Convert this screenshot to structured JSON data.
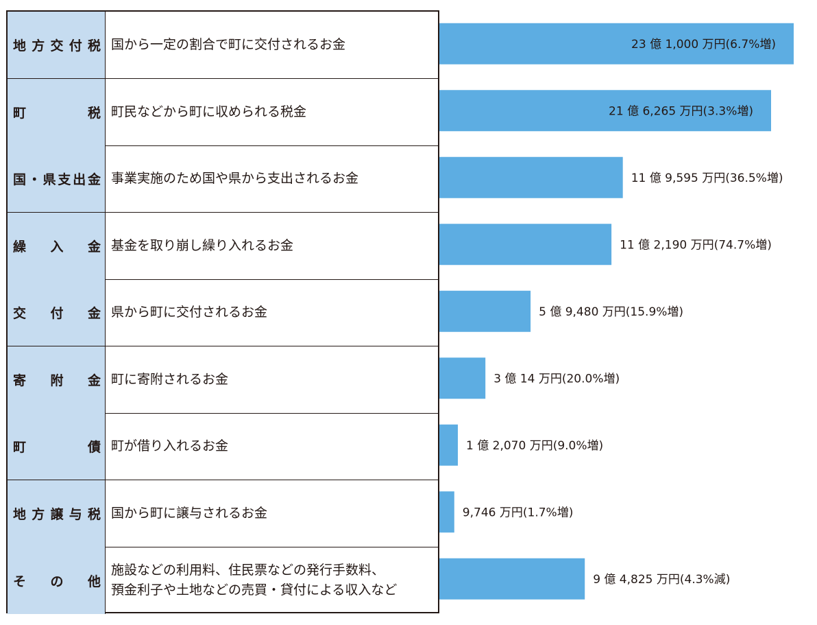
{
  "rows": [
    {
      "name": "地方交付税",
      "description": "国から一定の割合で町に交付されるお金",
      "label": "23 億 1,000 万円(6.7%増)"
    },
    {
      "name": "町　　　税",
      "description": "町民などから町に収められる税金",
      "label": "21 億 6,265 万円(3.3%増)"
    },
    {
      "name": "国・県支出金",
      "description": "事業実施のため国や県から支出されるお金",
      "label": "11 億 9,595 万円(36.5%増)"
    },
    {
      "name": "繰　入　金",
      "description": "基金を取り崩し繰り入れるお金",
      "label": "11 億 2,190 万円(74.7%増)"
    },
    {
      "name": "交　付　金",
      "description": "県から町に交付されるお金",
      "label": "5 億 9,480 万円(15.9%増)"
    },
    {
      "name": "寄　附　金",
      "description": "町に寄附されるお金",
      "label": "3 億 14 万円(20.0%増)"
    },
    {
      "name": "町　　　債",
      "description": "町が借り入れるお金",
      "label": "1 億 2,070 万円(9.0%増)"
    },
    {
      "name": "地方譲与税",
      "description": "国から町に譲与されるお金",
      "label": "9,746 万円(1.7%増)"
    },
    {
      "name": "そ　の　他",
      "description": "施設などの利用料、住民票などの発行手数料、\n預金利子や土地などの売買・貸付による収入など",
      "label": "9 億 4,825 万円(4.3%減)"
    }
  ],
  "chart_data": {
    "type": "bar",
    "orientation": "horizontal",
    "unit": "万円",
    "categories": [
      "地方交付税",
      "町税",
      "国・県支出金",
      "繰入金",
      "交付金",
      "寄附金",
      "町債",
      "地方譲与税",
      "その他"
    ],
    "values": [
      231000,
      216265,
      119595,
      112190,
      59480,
      30014,
      12070,
      9746,
      94825
    ],
    "change_percent": [
      6.7,
      3.3,
      36.5,
      74.7,
      15.9,
      20.0,
      9.0,
      1.7,
      -4.3
    ],
    "data_labels": [
      "23 億 1,000 万円(6.7%増)",
      "21 億 6,265 万円(3.3%増)",
      "11 億 9,595 万円(36.5%増)",
      "11 億 2,190 万円(74.7%増)",
      "5 億 9,480 万円(15.9%増)",
      "3 億 14 万円(20.0%増)",
      "1 億 2,070 万円(9.0%増)",
      "9,746 万円(1.7%増)",
      "9 億 4,825 万円(4.3%減)"
    ],
    "title": "",
    "xlabel": "",
    "ylabel": "",
    "grid": false,
    "bar_color": "#5dade2"
  }
}
